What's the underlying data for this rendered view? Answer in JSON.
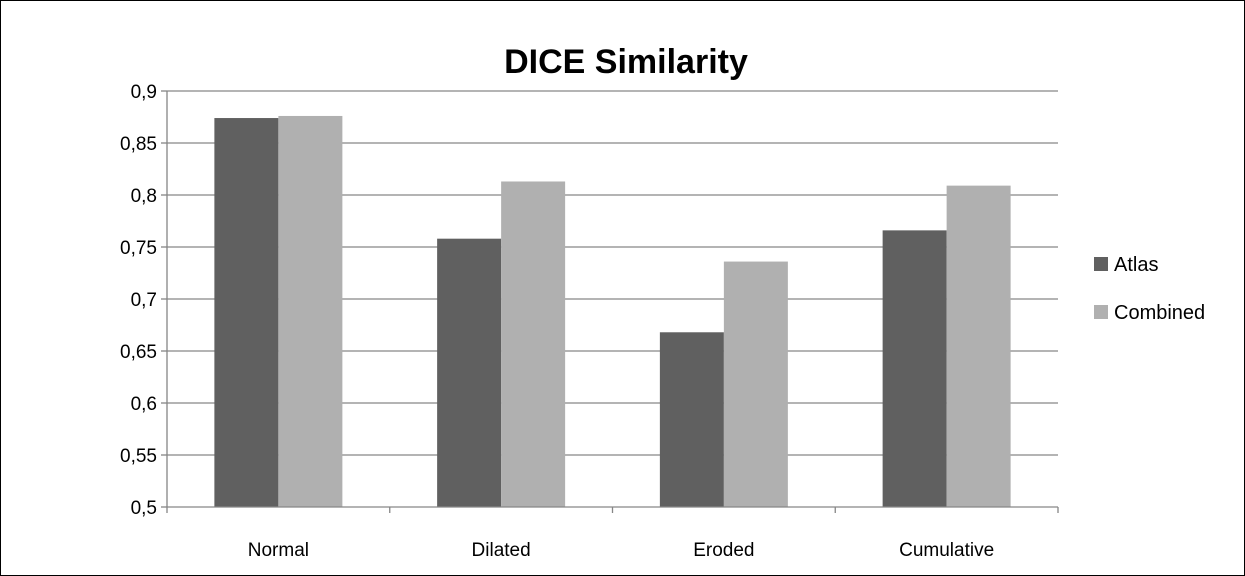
{
  "chart_data": {
    "type": "bar",
    "title": "DICE Similarity",
    "xlabel": "",
    "ylabel": "",
    "categories": [
      "Normal",
      "Dilated",
      "Eroded",
      "Cumulative"
    ],
    "series": [
      {
        "name": "Atlas",
        "color": "#606060",
        "values": [
          0.874,
          0.758,
          0.668,
          0.766
        ]
      },
      {
        "name": "Combined",
        "color": "#b0b0b0",
        "values": [
          0.876,
          0.813,
          0.736,
          0.809
        ]
      }
    ],
    "ylim": [
      0.5,
      0.9
    ],
    "yticks": [
      0.5,
      0.55,
      0.6,
      0.65,
      0.7,
      0.75,
      0.8,
      0.85,
      0.9
    ],
    "ytick_labels": [
      "0,5",
      "0,55",
      "0,6",
      "0,65",
      "0,7",
      "0,75",
      "0,8",
      "0,85",
      "0,9"
    ],
    "grid": "horizontal",
    "legend_position": "right",
    "gridline_color": "#868686",
    "axis_color": "#868686"
  }
}
